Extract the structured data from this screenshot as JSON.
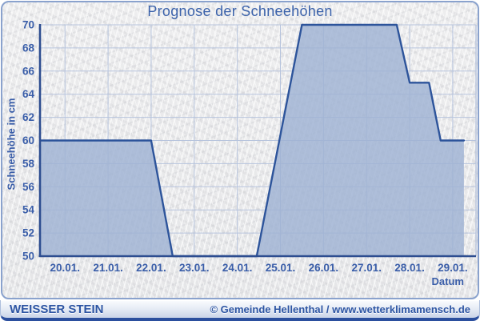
{
  "widget": {
    "title": "Prognose der Schneehöhen"
  },
  "footer": {
    "station": "WEISSER STEIN",
    "copyright": "© Gemeinde Hellenthal / www.wetterklimamensch.de"
  },
  "chart_data": {
    "type": "area",
    "title": "Prognose der Schneehöhen",
    "xlabel": "Datum",
    "ylabel": "Schneehöhe in cm",
    "ylim": [
      50,
      70
    ],
    "xlim": [
      19.42,
      29.54
    ],
    "grid": true,
    "legend": false,
    "y_ticks": [
      50,
      52,
      54,
      56,
      58,
      60,
      62,
      64,
      66,
      68,
      70
    ],
    "x_ticks": [
      {
        "day": 20,
        "label": "20.01."
      },
      {
        "day": 21,
        "label": "21.01."
      },
      {
        "day": 22,
        "label": "22.01."
      },
      {
        "day": 23,
        "label": "23.01."
      },
      {
        "day": 24,
        "label": "24.01."
      },
      {
        "day": 25,
        "label": "25.01."
      },
      {
        "day": 26,
        "label": "26.01."
      },
      {
        "day": 27,
        "label": "27.01."
      },
      {
        "day": 28,
        "label": "28.01."
      },
      {
        "day": 29,
        "label": "29.01."
      }
    ],
    "series": [
      {
        "name": "Schneehöhe",
        "points": [
          [
            19.42,
            60
          ],
          [
            22.0,
            60
          ],
          [
            22.5,
            50
          ],
          [
            24.45,
            50
          ],
          [
            25.5,
            70
          ],
          [
            27.7,
            70
          ],
          [
            28.0,
            65
          ],
          [
            28.45,
            65
          ],
          [
            28.72,
            60
          ],
          [
            29.26,
            60
          ]
        ]
      }
    ],
    "colors": {
      "fill": "#9fb2d3",
      "line": "#2d549b",
      "grid": "#b7c4dd",
      "axis": "#2d4d90",
      "text": "#3a5ea9"
    }
  }
}
